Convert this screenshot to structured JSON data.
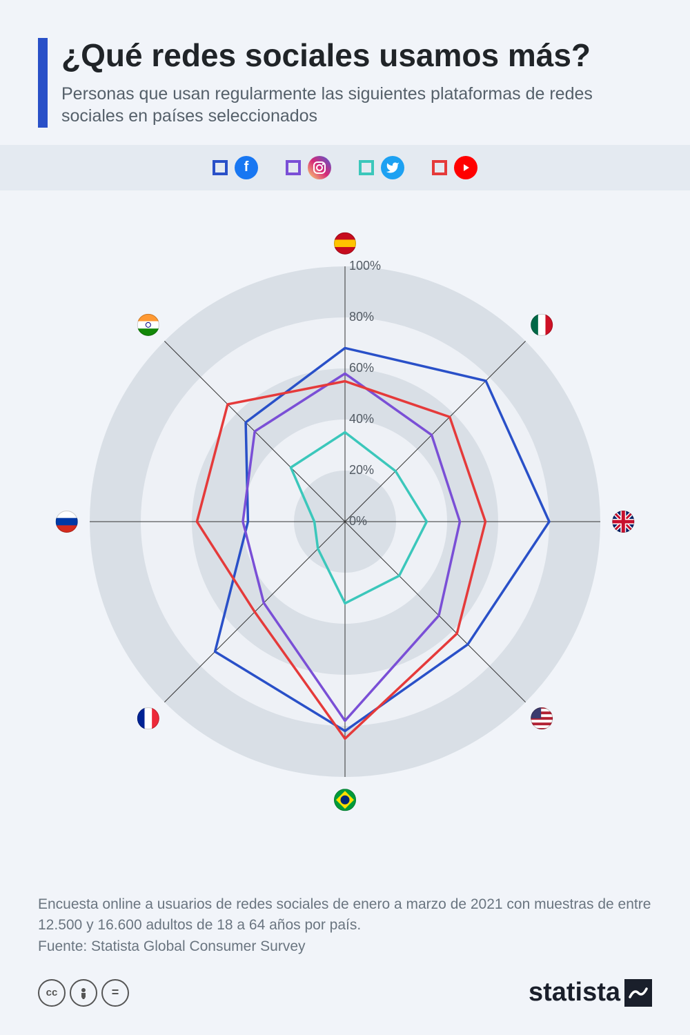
{
  "title": "¿Qué redes sociales usamos más?",
  "subtitle": "Personas que usan regularmente las siguientes plataformas de redes sociales en países seleccionados",
  "accent_color": "#2950c8",
  "background_color": "#f1f4f9",
  "legend_bg": "#e4eaf1",
  "chart": {
    "type": "radar",
    "max": 100,
    "rings": [
      0,
      20,
      40,
      60,
      80,
      100
    ],
    "ring_labels": [
      "0%",
      "20%",
      "40%",
      "60%",
      "80%",
      "100%"
    ],
    "label_fontsize": 18,
    "grid_fill": "#d9dfe6",
    "grid_ring_fill": "#eef1f6",
    "axis_color": "#333333",
    "axis_width": 1,
    "countries": [
      "España",
      "México",
      "Reino Unido",
      "EE.UU.",
      "Brasil",
      "Francia",
      "Rusia",
      "India"
    ],
    "flags": [
      {
        "name": "es",
        "bands": [
          "#c60b1e",
          "#ffc400",
          "#c60b1e"
        ],
        "dir": "h"
      },
      {
        "name": "mx",
        "bands": [
          "#006847",
          "#ffffff",
          "#ce1126"
        ],
        "dir": "v"
      },
      {
        "name": "gb",
        "union": true
      },
      {
        "name": "us",
        "stripes": true
      },
      {
        "name": "br",
        "brazil": true
      },
      {
        "name": "fr",
        "bands": [
          "#002395",
          "#ffffff",
          "#ed2939"
        ],
        "dir": "v"
      },
      {
        "name": "ru",
        "bands": [
          "#ffffff",
          "#0039a6",
          "#d52b1e"
        ],
        "dir": "h"
      },
      {
        "name": "in",
        "bands": [
          "#ff9933",
          "#ffffff",
          "#138808"
        ],
        "dir": "h",
        "wheel": "#000080"
      }
    ],
    "series": [
      {
        "name": "Facebook",
        "color": "#2950c8",
        "brand_bg": "#1877f2",
        "glyph": "f",
        "width": 3.5,
        "values": [
          68,
          78,
          80,
          68,
          82,
          72,
          38,
          55
        ]
      },
      {
        "name": "Instagram",
        "color": "#7a4fd6",
        "brand_bg": "linear-gradient(45deg,#feda75,#d62976,#4f5bd5)",
        "glyph": "◯",
        "width": 3.5,
        "values": [
          58,
          48,
          45,
          52,
          78,
          45,
          40,
          50
        ]
      },
      {
        "name": "Twitter",
        "color": "#3bc7bb",
        "brand_bg": "#1da1f2",
        "glyph": "t",
        "width": 3.5,
        "values": [
          35,
          28,
          32,
          30,
          32,
          15,
          12,
          30
        ]
      },
      {
        "name": "YouTube",
        "color": "#e53a3a",
        "brand_bg": "#ff0000",
        "glyph": "▶",
        "width": 3.5,
        "values": [
          55,
          58,
          55,
          62,
          85,
          50,
          58,
          65
        ]
      }
    ]
  },
  "footnote_line1": "Encuesta online a usuarios de redes sociales de enero a marzo de 2021 con muestras de entre 12.500 y 16.600 adultos de 18 a 64 años por país.",
  "footnote_line2": "Fuente: Statista Global Consumer Survey",
  "cc_badges": [
    "cc",
    "BY",
    "="
  ],
  "logo_text": "statista"
}
